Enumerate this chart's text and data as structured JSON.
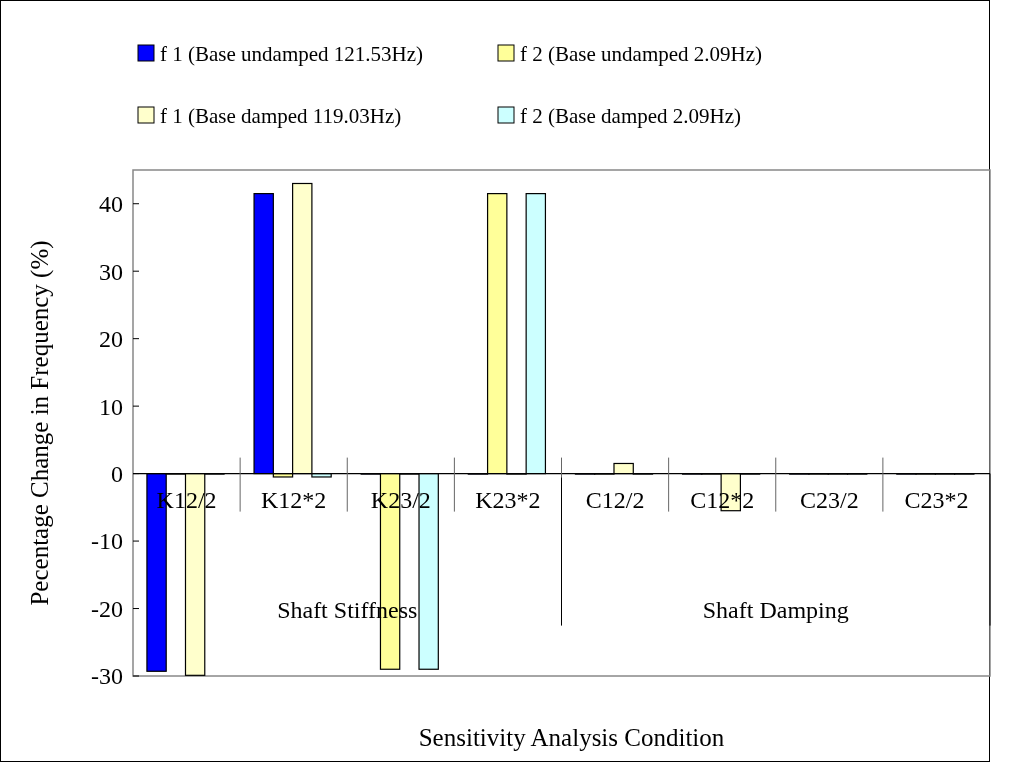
{
  "chart_data": {
    "type": "bar",
    "xlabel": "Sensitivity Analysis Condition",
    "ylabel": "Pecentage Change in Frequency (%)",
    "categories": [
      "K12/2",
      "K12*2",
      "K23/2",
      "K23*2",
      "C12/2",
      "C12*2",
      "C23/2",
      "C23*2"
    ],
    "series": [
      {
        "name": "f 1 (Base undamped 121.53Hz)",
        "color": "#0000ff",
        "values": [
          -29.3,
          41.5,
          0,
          0,
          0,
          0,
          0,
          0
        ]
      },
      {
        "name": "f 2 (Base undamped 2.09Hz)",
        "color": "#ffff99",
        "values": [
          0,
          -0.5,
          -29,
          41.5,
          0,
          0,
          0,
          0
        ]
      },
      {
        "name": "f 1 (Base damped 119.03Hz)",
        "color": "#ffffcc",
        "values": [
          -29.9,
          43,
          0,
          0,
          1.5,
          -5.5,
          0,
          0
        ]
      },
      {
        "name": "f 2 (Base damped 2.09Hz)",
        "color": "#ccffff",
        "values": [
          0,
          -0.5,
          -29,
          41.5,
          0,
          0,
          0,
          0
        ]
      }
    ],
    "ylim": [
      -30,
      45
    ],
    "yticks": [
      -30,
      -20,
      -10,
      0,
      10,
      20,
      30,
      40
    ],
    "grid": false,
    "legend": "top",
    "annotations": [
      "Shaft Stiffness",
      "Shaft Damping"
    ]
  }
}
